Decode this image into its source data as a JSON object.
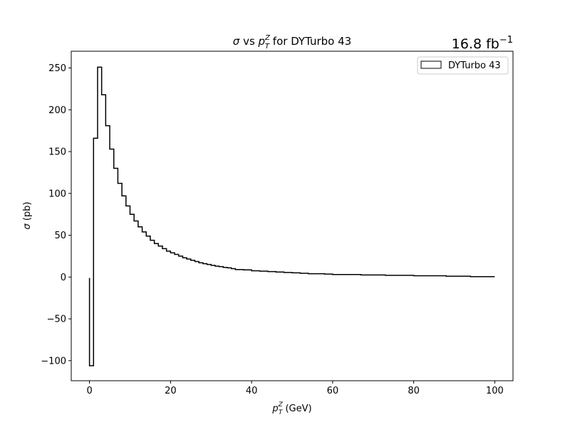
{
  "chart_data": {
    "type": "step",
    "title": {
      "sym": "σ",
      "mid": " vs ",
      "p": "p",
      "sup": "Z",
      "sub": "T",
      "tail": " for DYTurbo 43"
    },
    "lumi": {
      "base": "16.8 fb",
      "sup": "−1"
    },
    "xlabel": {
      "p": "p",
      "sup": "Z",
      "sub": "T",
      "unit": " (GeV)"
    },
    "ylabel": {
      "sym": "σ",
      "unit": " (pb)"
    },
    "xlim": [
      -4.5,
      104.5
    ],
    "ylim": [
      -124,
      270
    ],
    "xticks": [
      0,
      20,
      40,
      60,
      80,
      100
    ],
    "xtick_labels": [
      "0",
      "20",
      "40",
      "60",
      "80",
      "100"
    ],
    "yticks": [
      -100,
      -50,
      0,
      50,
      100,
      150,
      200,
      250
    ],
    "ytick_labels": [
      "−100",
      "−50",
      "0",
      "50",
      "100",
      "150",
      "200",
      "250"
    ],
    "legend": {
      "placement": "upper-right",
      "label": "DYTurbo 43"
    },
    "series": [
      {
        "name": "DYTurbo 43",
        "color": "#000000",
        "bin_edges": [
          0,
          0.4,
          1,
          2,
          3,
          4,
          5,
          6,
          7,
          8,
          9,
          10,
          11,
          12,
          13,
          14,
          15,
          16,
          17,
          18,
          19,
          20,
          21,
          22,
          23,
          24,
          25,
          26,
          27,
          28,
          29,
          30,
          31,
          32,
          33,
          34,
          35,
          36,
          38,
          40,
          42,
          44,
          46,
          48,
          50,
          52,
          54,
          56,
          58,
          60,
          64,
          67,
          70,
          73,
          77,
          80,
          84,
          88,
          94,
          100
        ],
        "values": [
          -106,
          -106,
          166,
          251,
          218,
          181,
          153,
          130,
          112,
          97,
          85,
          75,
          67,
          60,
          54,
          49,
          44,
          40,
          37,
          34,
          31,
          29,
          27,
          25,
          23,
          21.5,
          20,
          18.5,
          17,
          16,
          15,
          14,
          13,
          12.5,
          11.5,
          11,
          10,
          9,
          8.5,
          7.5,
          7,
          6.5,
          6,
          5.5,
          5,
          4.5,
          4,
          4,
          3.5,
          3,
          3,
          2.5,
          2.5,
          2,
          2,
          1.5,
          1.5,
          1,
          0.5
        ],
        "start_value": -1
      }
    ]
  }
}
